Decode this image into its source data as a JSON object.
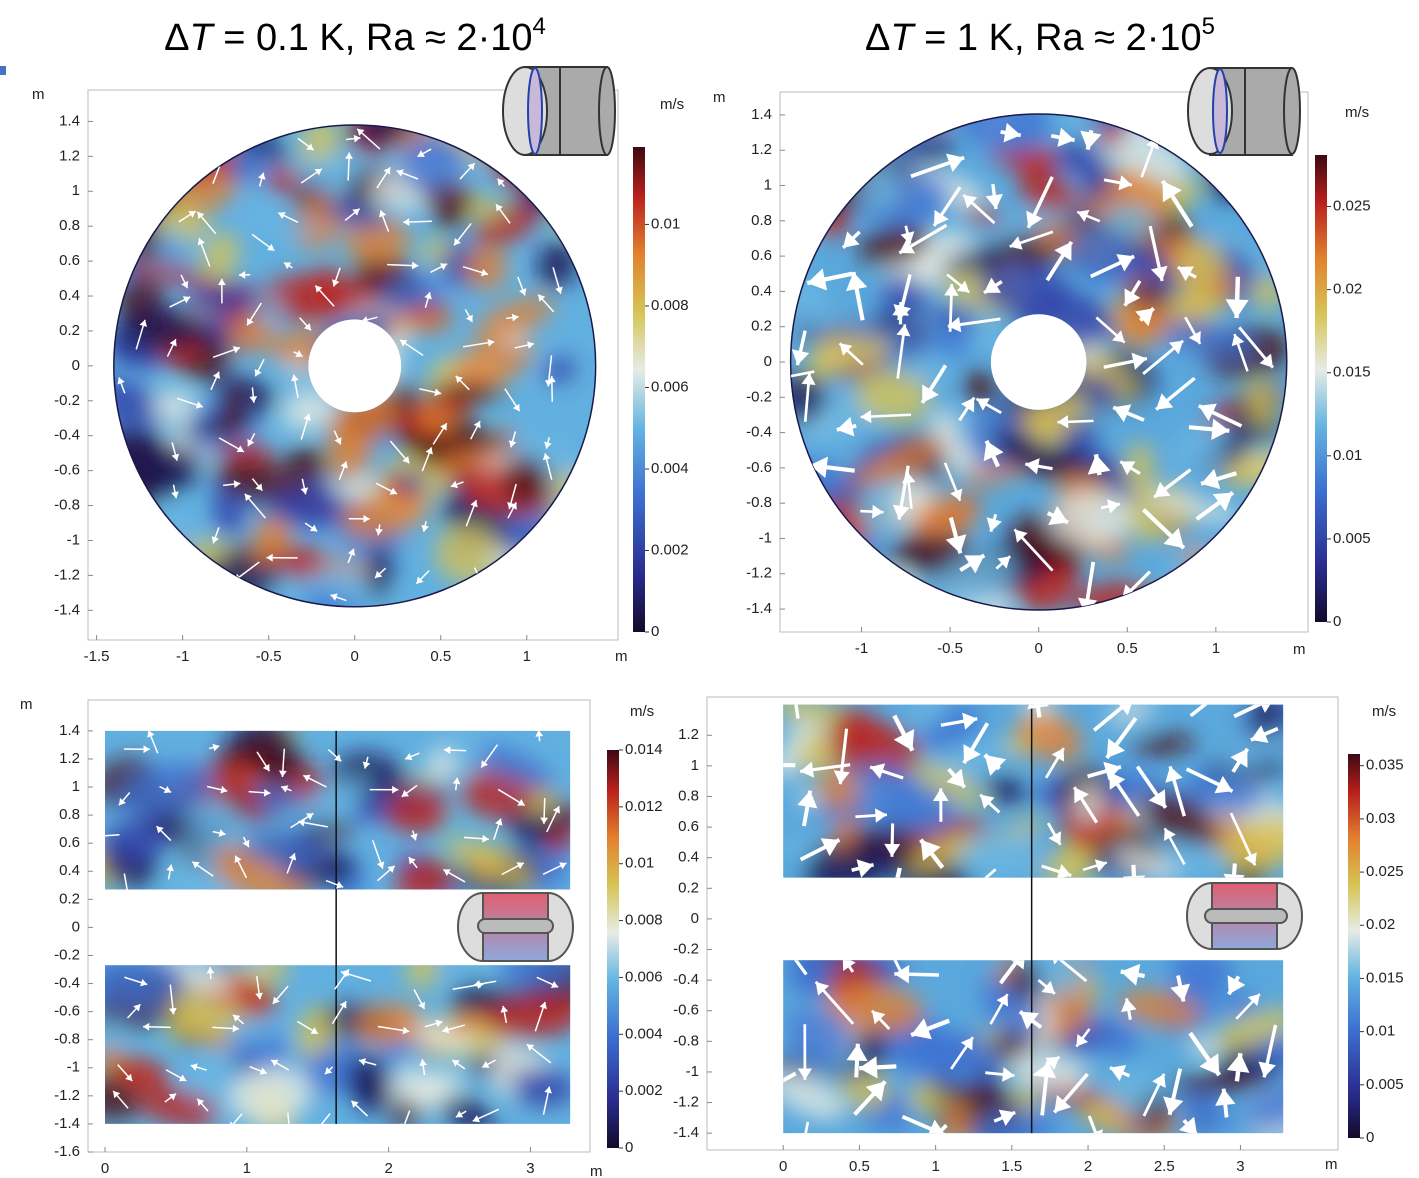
{
  "chart_data": [
    {
      "type": "heatmap",
      "shape": "ring",
      "title": {
        "prefix": "Δ",
        "var": "T",
        "rest": " = 0.1 K, Ra ≈ 2·10",
        "exp": "4"
      },
      "x_label": "m",
      "y_label": "m",
      "xlim": [
        -1.55,
        1.53
      ],
      "ylim": [
        -1.57,
        1.58
      ],
      "xticks": [
        -1.5,
        -1,
        -0.5,
        0,
        0.5,
        1
      ],
      "yticks": [
        -1.4,
        -1.2,
        -1,
        -0.8,
        -0.6,
        -0.4,
        -0.2,
        0,
        0.2,
        0.4,
        0.6,
        0.8,
        1,
        1.2,
        1.4
      ],
      "colorbar": {
        "label": "m/s",
        "lim": [
          0,
          0.0119
        ],
        "ticks": [
          0,
          0.002,
          0.004,
          0.006,
          0.008,
          0.01
        ]
      }
    },
    {
      "type": "heatmap",
      "shape": "ring",
      "title": {
        "prefix": "Δ",
        "var": "T",
        "rest": " = 1 K, Ra ≈ 2·10",
        "exp": "5"
      },
      "x_label": "m",
      "y_label": "m",
      "xlim": [
        -1.46,
        1.52
      ],
      "ylim": [
        -1.53,
        1.53
      ],
      "xticks": [
        -1,
        -0.5,
        0,
        0.5,
        1
      ],
      "yticks": [
        -1.4,
        -1.2,
        -1,
        -0.8,
        -0.6,
        -0.4,
        -0.2,
        0,
        0.2,
        0.4,
        0.6,
        0.8,
        1,
        1.2,
        1.4
      ],
      "colorbar": {
        "label": "m/s",
        "lim": [
          0,
          0.0281
        ],
        "ticks": [
          0,
          0.005,
          0.01,
          0.015,
          0.02,
          0.025
        ]
      }
    },
    {
      "type": "heatmap",
      "shape": "rect",
      "x_label": "m",
      "y_label": "m",
      "xlim": [
        -0.12,
        3.42
      ],
      "ylim": [
        -1.6,
        1.62
      ],
      "xticks": [
        0,
        1,
        2,
        3
      ],
      "yticks": [
        -1.6,
        -1.4,
        -1.2,
        -1,
        -0.8,
        -0.6,
        -0.4,
        -0.2,
        0,
        0.2,
        0.4,
        0.6,
        0.8,
        1,
        1.2,
        1.4
      ],
      "colorbar": {
        "label": "m/s",
        "lim": [
          0,
          0.014
        ],
        "ticks": [
          0,
          0.002,
          0.004,
          0.006,
          0.008,
          0.01,
          0.012,
          0.014
        ]
      }
    },
    {
      "type": "heatmap",
      "shape": "rect",
      "x_label": "m",
      "xlim": [
        -0.5,
        3.64
      ],
      "ylim": [
        -1.51,
        1.45
      ],
      "xticks": [
        0,
        0.5,
        1,
        1.5,
        2,
        2.5,
        3
      ],
      "yticks": [
        -1.4,
        -1.2,
        -1,
        -0.8,
        -0.6,
        -0.4,
        -0.2,
        0,
        0.2,
        0.4,
        0.6,
        0.8,
        1,
        1.2
      ],
      "colorbar": {
        "label": "m/s",
        "lim": [
          0,
          0.0361
        ],
        "ticks": [
          0,
          0.005,
          0.01,
          0.015,
          0.02,
          0.025,
          0.03,
          0.035
        ]
      }
    }
  ]
}
